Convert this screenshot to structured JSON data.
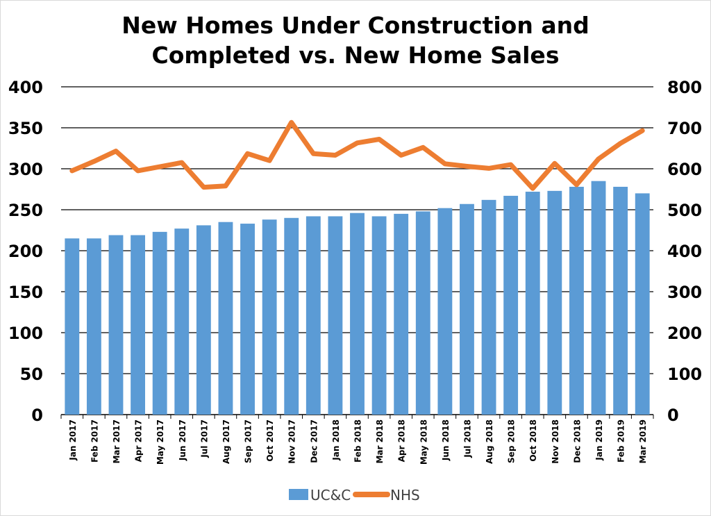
{
  "chart_data": {
    "type": "bar",
    "title_lines": [
      "New Homes Under Construction and",
      "Completed vs. New Home Sales"
    ],
    "categories": [
      "Jan 2017",
      "Feb 2017",
      "Mar 2017",
      "Apr 2017",
      "May 2017",
      "Jun 2017",
      "Jul 2017",
      "Aug 2017",
      "Sep 2017",
      "Oct 2017",
      "Nov 2017",
      "Dec 2017",
      "Jan 2018",
      "Feb 2018",
      "Mar 2018",
      "Apr 2018",
      "May 2018",
      "Jun 2018",
      "Jul 2018",
      "Aug 2018",
      "Sep 2018",
      "Oct 2018",
      "Nov 2018",
      "Dec 2018",
      "Jan 2019",
      "Feb 2019",
      "Mar 2019"
    ],
    "series": [
      {
        "name": "UC&C",
        "type": "bar",
        "axis": "left",
        "color": "#5B9BD5",
        "values": [
          215,
          215,
          219,
          219,
          223,
          227,
          231,
          235,
          233,
          238,
          240,
          242,
          242,
          246,
          242,
          245,
          248,
          252,
          257,
          262,
          267,
          272,
          273,
          278,
          285,
          278,
          270
        ]
      },
      {
        "name": "NHS",
        "type": "line",
        "axis": "right",
        "color": "#ED7D31",
        "values": [
          595,
          618,
          643,
          595,
          605,
          615,
          555,
          558,
          637,
          620,
          713,
          637,
          633,
          663,
          672,
          633,
          652,
          612,
          606,
          601,
          610,
          552,
          613,
          561,
          624,
          662,
          693
        ]
      }
    ],
    "y_left": {
      "min": 0,
      "max": 400,
      "ticks": [
        0,
        50,
        100,
        150,
        200,
        250,
        300,
        350,
        400
      ]
    },
    "y_right": {
      "min": 0,
      "max": 800,
      "ticks": [
        0,
        100,
        200,
        300,
        400,
        500,
        600,
        700,
        800
      ]
    },
    "grid": true,
    "legend": {
      "position": "bottom"
    }
  }
}
